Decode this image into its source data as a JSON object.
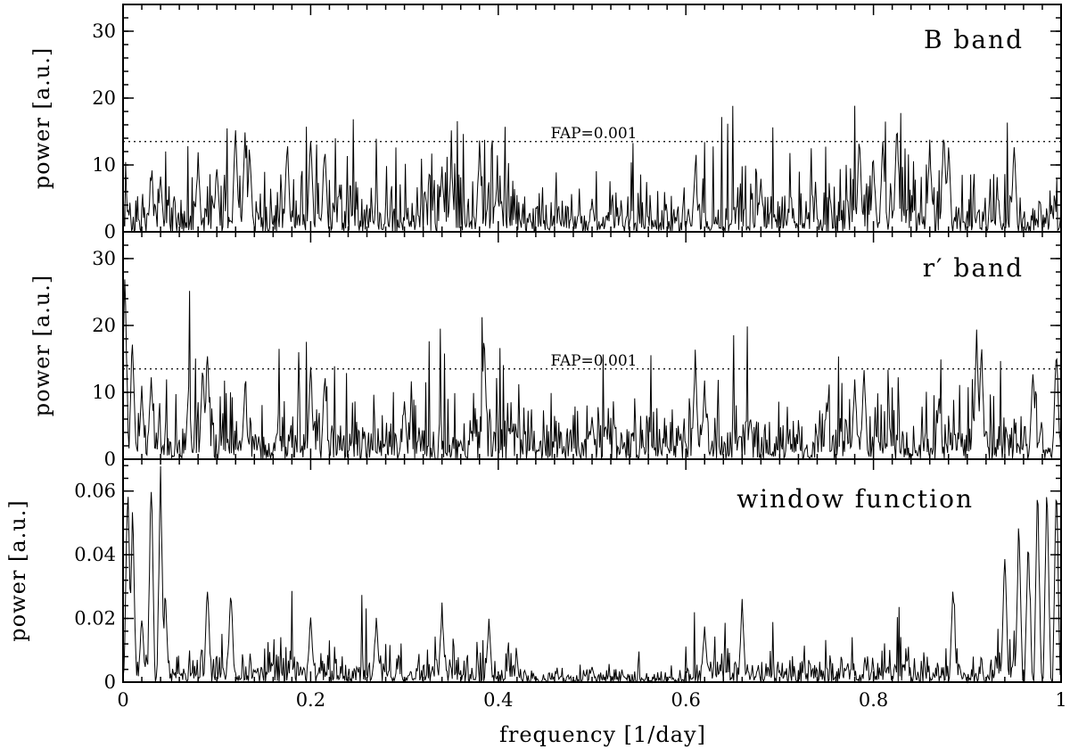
{
  "figure": {
    "xlabel": "frequency [1/day]",
    "xlim": [
      0,
      1
    ],
    "xticks": [
      "0",
      "0.2",
      "0.4",
      "0.6",
      "0.8",
      "1"
    ]
  },
  "chart_data": [
    {
      "type": "line",
      "panel": "B band",
      "title": "B band",
      "xlabel": "frequency [1/day]",
      "ylabel": "power [a.u.]",
      "xlim": [
        0,
        1
      ],
      "ylim": [
        0,
        34
      ],
      "yticks": [
        "0",
        "10",
        "20",
        "30"
      ],
      "fap": {
        "label": "FAP=0.001",
        "value": 13.5
      },
      "peaks": [
        {
          "x": 0.005,
          "y": 4
        },
        {
          "x": 0.03,
          "y": 8
        },
        {
          "x": 0.04,
          "y": 9
        },
        {
          "x": 0.08,
          "y": 12
        },
        {
          "x": 0.1,
          "y": 11
        },
        {
          "x": 0.12,
          "y": 17
        },
        {
          "x": 0.13,
          "y": 15
        },
        {
          "x": 0.135,
          "y": 14
        },
        {
          "x": 0.175,
          "y": 14.5
        },
        {
          "x": 0.2,
          "y": 15.8
        },
        {
          "x": 0.215,
          "y": 14.2
        },
        {
          "x": 0.34,
          "y": 10
        },
        {
          "x": 0.35,
          "y": 11
        },
        {
          "x": 0.38,
          "y": 13.8
        },
        {
          "x": 0.5,
          "y": 5
        },
        {
          "x": 0.61,
          "y": 10.5
        },
        {
          "x": 0.68,
          "y": 8
        },
        {
          "x": 0.785,
          "y": 15
        },
        {
          "x": 0.8,
          "y": 11
        },
        {
          "x": 0.81,
          "y": 15
        },
        {
          "x": 0.825,
          "y": 18.5
        },
        {
          "x": 0.86,
          "y": 14
        },
        {
          "x": 0.875,
          "y": 17.5
        },
        {
          "x": 0.88,
          "y": 14
        },
        {
          "x": 0.95,
          "y": 14
        },
        {
          "x": 0.99,
          "y": 4
        }
      ]
    },
    {
      "type": "line",
      "panel": "r' band",
      "title": "r′ band",
      "xlabel": "frequency [1/day]",
      "ylabel": "power [a.u.]",
      "xlim": [
        0,
        1
      ],
      "ylim": [
        0,
        34
      ],
      "yticks": [
        "0",
        "10",
        "20",
        "30"
      ],
      "fap": {
        "label": "FAP=0.001",
        "value": 13.5
      },
      "peaks": [
        {
          "x": 0.002,
          "y": 31
        },
        {
          "x": 0.01,
          "y": 20
        },
        {
          "x": 0.02,
          "y": 11
        },
        {
          "x": 0.03,
          "y": 14
        },
        {
          "x": 0.07,
          "y": 12
        },
        {
          "x": 0.085,
          "y": 16
        },
        {
          "x": 0.09,
          "y": 18
        },
        {
          "x": 0.13,
          "y": 12
        },
        {
          "x": 0.2,
          "y": 15
        },
        {
          "x": 0.215,
          "y": 14
        },
        {
          "x": 0.3,
          "y": 9
        },
        {
          "x": 0.385,
          "y": 20.3
        },
        {
          "x": 0.5,
          "y": 7
        },
        {
          "x": 0.61,
          "y": 17
        },
        {
          "x": 0.62,
          "y": 12
        },
        {
          "x": 0.78,
          "y": 13
        },
        {
          "x": 0.79,
          "y": 15.5
        },
        {
          "x": 0.87,
          "y": 10
        },
        {
          "x": 0.91,
          "y": 21
        },
        {
          "x": 0.915,
          "y": 19
        },
        {
          "x": 0.97,
          "y": 14.5
        },
        {
          "x": 0.995,
          "y": 19
        }
      ]
    },
    {
      "type": "line",
      "panel": "window function",
      "title": "window function",
      "xlabel": "frequency [1/day]",
      "ylabel": "power [a.u.]",
      "xlim": [
        0,
        1
      ],
      "ylim": [
        0,
        0.07
      ],
      "yticks": [
        "0",
        "0.02",
        "0.04",
        "0.06"
      ],
      "peaks": [
        {
          "x": 0.005,
          "y": 0.07
        },
        {
          "x": 0.01,
          "y": 0.06
        },
        {
          "x": 0.02,
          "y": 0.022
        },
        {
          "x": 0.03,
          "y": 0.07
        },
        {
          "x": 0.04,
          "y": 0.07
        },
        {
          "x": 0.045,
          "y": 0.03
        },
        {
          "x": 0.09,
          "y": 0.033
        },
        {
          "x": 0.115,
          "y": 0.032
        },
        {
          "x": 0.2,
          "y": 0.023
        },
        {
          "x": 0.27,
          "y": 0.022
        },
        {
          "x": 0.34,
          "y": 0.025
        },
        {
          "x": 0.39,
          "y": 0.02
        },
        {
          "x": 0.5,
          "y": 0.005
        },
        {
          "x": 0.62,
          "y": 0.02
        },
        {
          "x": 0.66,
          "y": 0.027
        },
        {
          "x": 0.885,
          "y": 0.033
        },
        {
          "x": 0.94,
          "y": 0.045
        },
        {
          "x": 0.955,
          "y": 0.055
        },
        {
          "x": 0.965,
          "y": 0.05
        },
        {
          "x": 0.975,
          "y": 0.065
        },
        {
          "x": 0.985,
          "y": 0.07
        },
        {
          "x": 0.995,
          "y": 0.07
        }
      ]
    }
  ]
}
